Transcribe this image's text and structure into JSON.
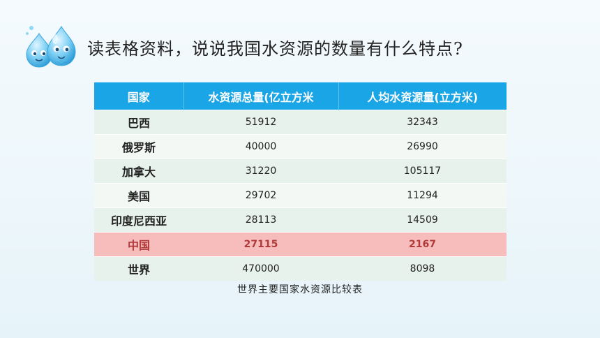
{
  "question": "读表格资料，说说我国水资源的数量有什么特点?",
  "table": {
    "headers": [
      "国家",
      "水资源总量(亿立方米",
      "人均水资源量(立方米)"
    ],
    "rows": [
      {
        "country": "巴西",
        "total": "51912",
        "per_capita": "32343"
      },
      {
        "country": "俄罗斯",
        "total": "40000",
        "per_capita": "26990"
      },
      {
        "country": "加拿大",
        "total": "31220",
        "per_capita": "105117"
      },
      {
        "country": "美国",
        "total": "29702",
        "per_capita": "11294"
      },
      {
        "country": "印度尼西亚",
        "total": "28113",
        "per_capita": "14509"
      },
      {
        "country": "中国",
        "total": "27115",
        "per_capita": "2167"
      },
      {
        "country": "世界",
        "total": "470000",
        "per_capita": "8098"
      }
    ],
    "highlight_row": 5
  },
  "caption": "世界主要国家水资源比较表",
  "colors": {
    "header_bg": "#1aa5e6",
    "highlight_bg": "#f7bcbc",
    "highlight_text": "#b03a3a"
  },
  "icons": {
    "mascot": "water-droplet-mascots-icon"
  }
}
